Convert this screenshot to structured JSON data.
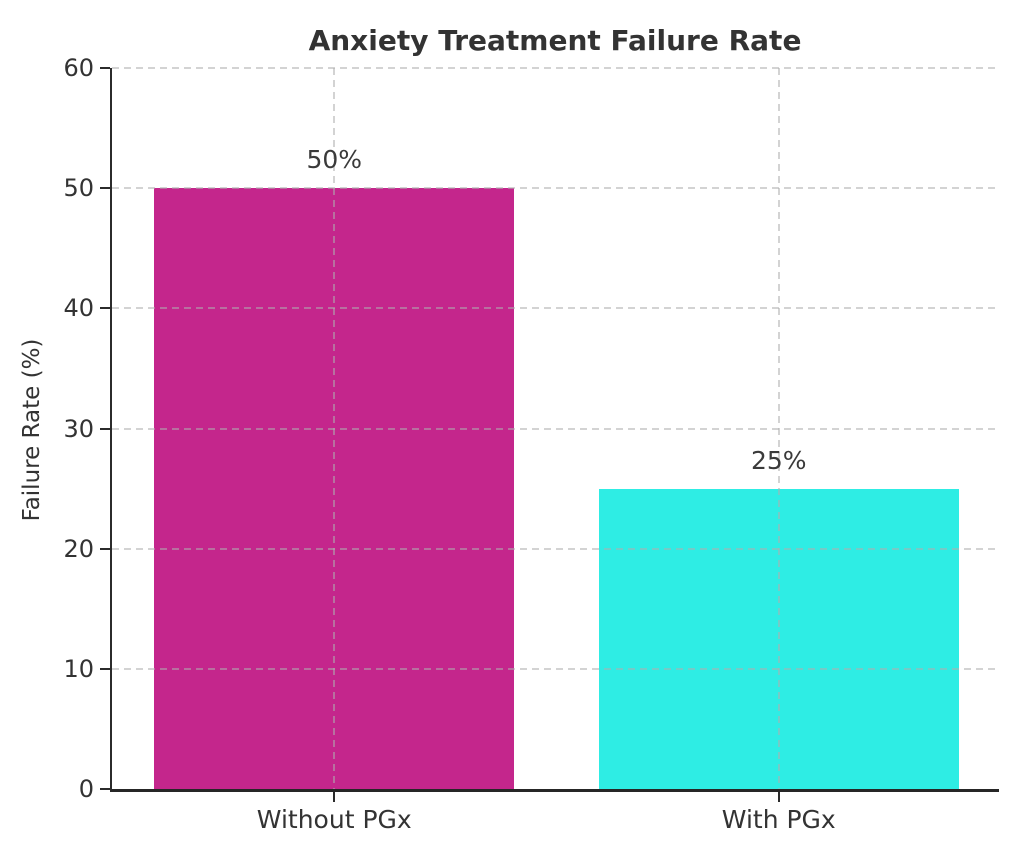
{
  "chart_data": {
    "type": "bar",
    "title": "Anxiety Treatment Failure Rate",
    "ylabel": "Failure Rate (%)",
    "xlabel": "",
    "categories": [
      "Without PGx",
      "With PGx"
    ],
    "values": [
      50,
      25
    ],
    "value_labels": [
      "50%",
      "25%"
    ],
    "bar_colors": [
      "#c4268c",
      "#2eede4"
    ],
    "ylim": [
      0,
      60
    ],
    "yticks": [
      0,
      10,
      20,
      30,
      40,
      50,
      60
    ],
    "grid": "dashed light-gray horizontal lines at each ytick and vertical lines at category centers, drawn above bars",
    "legend": "none",
    "text_color": "#333333",
    "spine_color": "#2b2b2b",
    "background_color": "#ffffff"
  }
}
